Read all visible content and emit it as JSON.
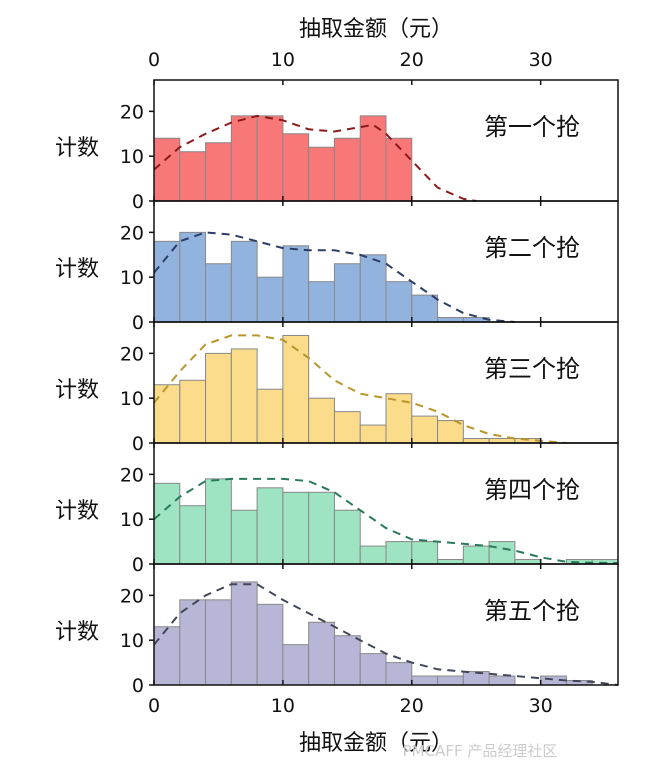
{
  "chart_data": {
    "type": "bar",
    "title": "",
    "xlabel": "抽取金额（元）",
    "xlabel_top": "抽取金额（元）",
    "ylabel": "计数",
    "xlim": [
      0,
      36
    ],
    "ylim": [
      0,
      27
    ],
    "bin_width": 2,
    "xticks": [
      0,
      10,
      20,
      30
    ],
    "yticks": [
      0,
      10,
      20
    ],
    "x_tick_labels": [
      "0",
      "10",
      "20",
      "30"
    ],
    "y_tick_labels": [
      "0",
      "10",
      "20"
    ],
    "grid": false,
    "panels": [
      {
        "name": "第一个抢",
        "color": "#f87777",
        "curve_color": "#8b1a1a",
        "values": [
          14,
          11,
          13,
          19,
          19,
          15,
          12,
          14,
          19,
          14,
          0,
          0,
          0,
          0,
          0,
          0,
          0,
          0
        ],
        "fit": [
          [
            0,
            7
          ],
          [
            2,
            12
          ],
          [
            4,
            15
          ],
          [
            6,
            17.5
          ],
          [
            8,
            19
          ],
          [
            10,
            18
          ],
          [
            12,
            16
          ],
          [
            14,
            15.5
          ],
          [
            16,
            16.5
          ],
          [
            17,
            17
          ],
          [
            18,
            15
          ],
          [
            20,
            9
          ],
          [
            22,
            3
          ],
          [
            24,
            0.5
          ],
          [
            25,
            0
          ]
        ]
      },
      {
        "name": "第二个抢",
        "color": "#93b3df",
        "curve_color": "#2c3e66",
        "values": [
          18,
          20,
          13,
          18,
          10,
          17,
          9,
          13,
          15,
          9,
          6,
          1,
          1,
          0,
          0,
          0,
          0,
          0
        ],
        "fit": [
          [
            0,
            11
          ],
          [
            2,
            18
          ],
          [
            4,
            20
          ],
          [
            6,
            19.5
          ],
          [
            8,
            18
          ],
          [
            10,
            16.5
          ],
          [
            12,
            16
          ],
          [
            14,
            16
          ],
          [
            16,
            15
          ],
          [
            18,
            13
          ],
          [
            20,
            9
          ],
          [
            22,
            5
          ],
          [
            24,
            2
          ],
          [
            26,
            0.5
          ],
          [
            28,
            0
          ]
        ]
      },
      {
        "name": "第三个抢",
        "color": "#fbdc8a",
        "curve_color": "#b8962b",
        "values": [
          13,
          14,
          20,
          21,
          12,
          24,
          10,
          7,
          4,
          11,
          6,
          5,
          1,
          1,
          1,
          0,
          0,
          0
        ],
        "fit": [
          [
            0,
            9
          ],
          [
            2,
            16
          ],
          [
            4,
            22
          ],
          [
            6,
            24
          ],
          [
            8,
            24
          ],
          [
            10,
            23
          ],
          [
            12,
            19
          ],
          [
            14,
            14
          ],
          [
            16,
            11
          ],
          [
            18,
            10
          ],
          [
            20,
            9
          ],
          [
            22,
            7
          ],
          [
            24,
            4
          ],
          [
            26,
            2
          ],
          [
            28,
            1
          ],
          [
            30,
            0.5
          ],
          [
            32,
            0
          ]
        ]
      },
      {
        "name": "第四个抢",
        "color": "#9ee3c2",
        "curve_color": "#2a7a5a",
        "values": [
          18,
          13,
          19,
          12,
          17,
          16,
          16,
          12,
          4,
          5,
          5,
          1,
          4,
          5,
          1,
          0,
          1,
          1
        ],
        "fit": [
          [
            0,
            10
          ],
          [
            2,
            15
          ],
          [
            4,
            18.5
          ],
          [
            6,
            19
          ],
          [
            8,
            19
          ],
          [
            10,
            19
          ],
          [
            12,
            18.5
          ],
          [
            14,
            16
          ],
          [
            16,
            12
          ],
          [
            18,
            8
          ],
          [
            20,
            5.5
          ],
          [
            22,
            5
          ],
          [
            24,
            4.5
          ],
          [
            26,
            4
          ],
          [
            28,
            3
          ],
          [
            30,
            1.5
          ],
          [
            32,
            0.5
          ],
          [
            34,
            0.3
          ],
          [
            36,
            0.2
          ]
        ]
      },
      {
        "name": "第五个抢",
        "color": "#b8b6d6",
        "curve_color": "#404858",
        "values": [
          13,
          19,
          19,
          23,
          18,
          9,
          14,
          11,
          7,
          5,
          2,
          2,
          3,
          2,
          0,
          2,
          1,
          0
        ],
        "fit": [
          [
            0,
            9
          ],
          [
            2,
            16
          ],
          [
            4,
            20
          ],
          [
            6,
            22.5
          ],
          [
            8,
            22.5
          ],
          [
            10,
            19
          ],
          [
            12,
            16
          ],
          [
            14,
            13
          ],
          [
            16,
            10
          ],
          [
            18,
            7
          ],
          [
            20,
            5
          ],
          [
            22,
            3.5
          ],
          [
            24,
            3
          ],
          [
            26,
            2.5
          ],
          [
            28,
            2
          ],
          [
            30,
            1.5
          ],
          [
            32,
            1
          ],
          [
            34,
            0.7
          ],
          [
            36,
            0
          ]
        ]
      }
    ]
  },
  "watermark": "PMCAFF 产品经理社区"
}
